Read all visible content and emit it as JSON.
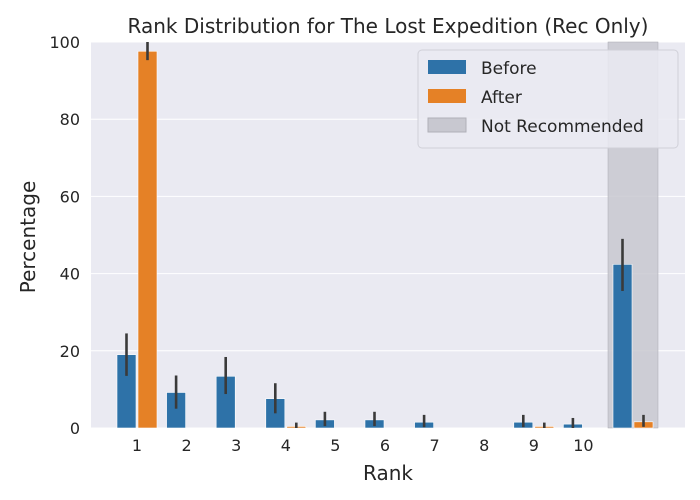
{
  "chart_data": {
    "type": "bar",
    "title": "Rank Distribution for The Lost Expedition (Rec Only)",
    "xlabel": "Rank",
    "ylabel": "Percentage",
    "ylim": [
      0,
      100
    ],
    "yticks": [
      0,
      20,
      40,
      60,
      80,
      100
    ],
    "categories": [
      "1",
      "2",
      "3",
      "4",
      "5",
      "6",
      "7",
      "8",
      "9",
      "10",
      ""
    ],
    "series": [
      {
        "name": "Before",
        "color": "#2e72a8",
        "values": [
          19,
          9.2,
          13.4,
          7.6,
          2.1,
          2.1,
          1.5,
          0,
          1.5,
          1.0,
          42.4
        ],
        "err_low": [
          13.5,
          5.0,
          8.8,
          3.8,
          0.5,
          0.5,
          0.2,
          0,
          0.2,
          0,
          35.5
        ],
        "err_high": [
          24.5,
          13.6,
          18.4,
          11.6,
          4.2,
          4.2,
          3.4,
          0,
          3.4,
          2.6,
          49.0
        ]
      },
      {
        "name": "After",
        "color": "#e58126",
        "values": [
          97.6,
          0,
          0,
          0.4,
          0,
          0,
          0,
          0,
          0.4,
          0,
          1.6
        ],
        "err_low": [
          95.3,
          0,
          0,
          0,
          0,
          0,
          0,
          0,
          0,
          0,
          0.3
        ],
        "err_high": [
          100,
          0,
          0,
          1.4,
          0,
          0,
          0,
          0,
          1.4,
          0,
          3.4
        ]
      }
    ],
    "shaded_region": {
      "name": "Not Recommended",
      "category": "",
      "color": "#c8c8d0"
    },
    "legend": {
      "placement": "top-right",
      "entries": [
        "Before",
        "After",
        "Not Recommended"
      ]
    },
    "grid": true,
    "background": "#eaeaf2"
  }
}
